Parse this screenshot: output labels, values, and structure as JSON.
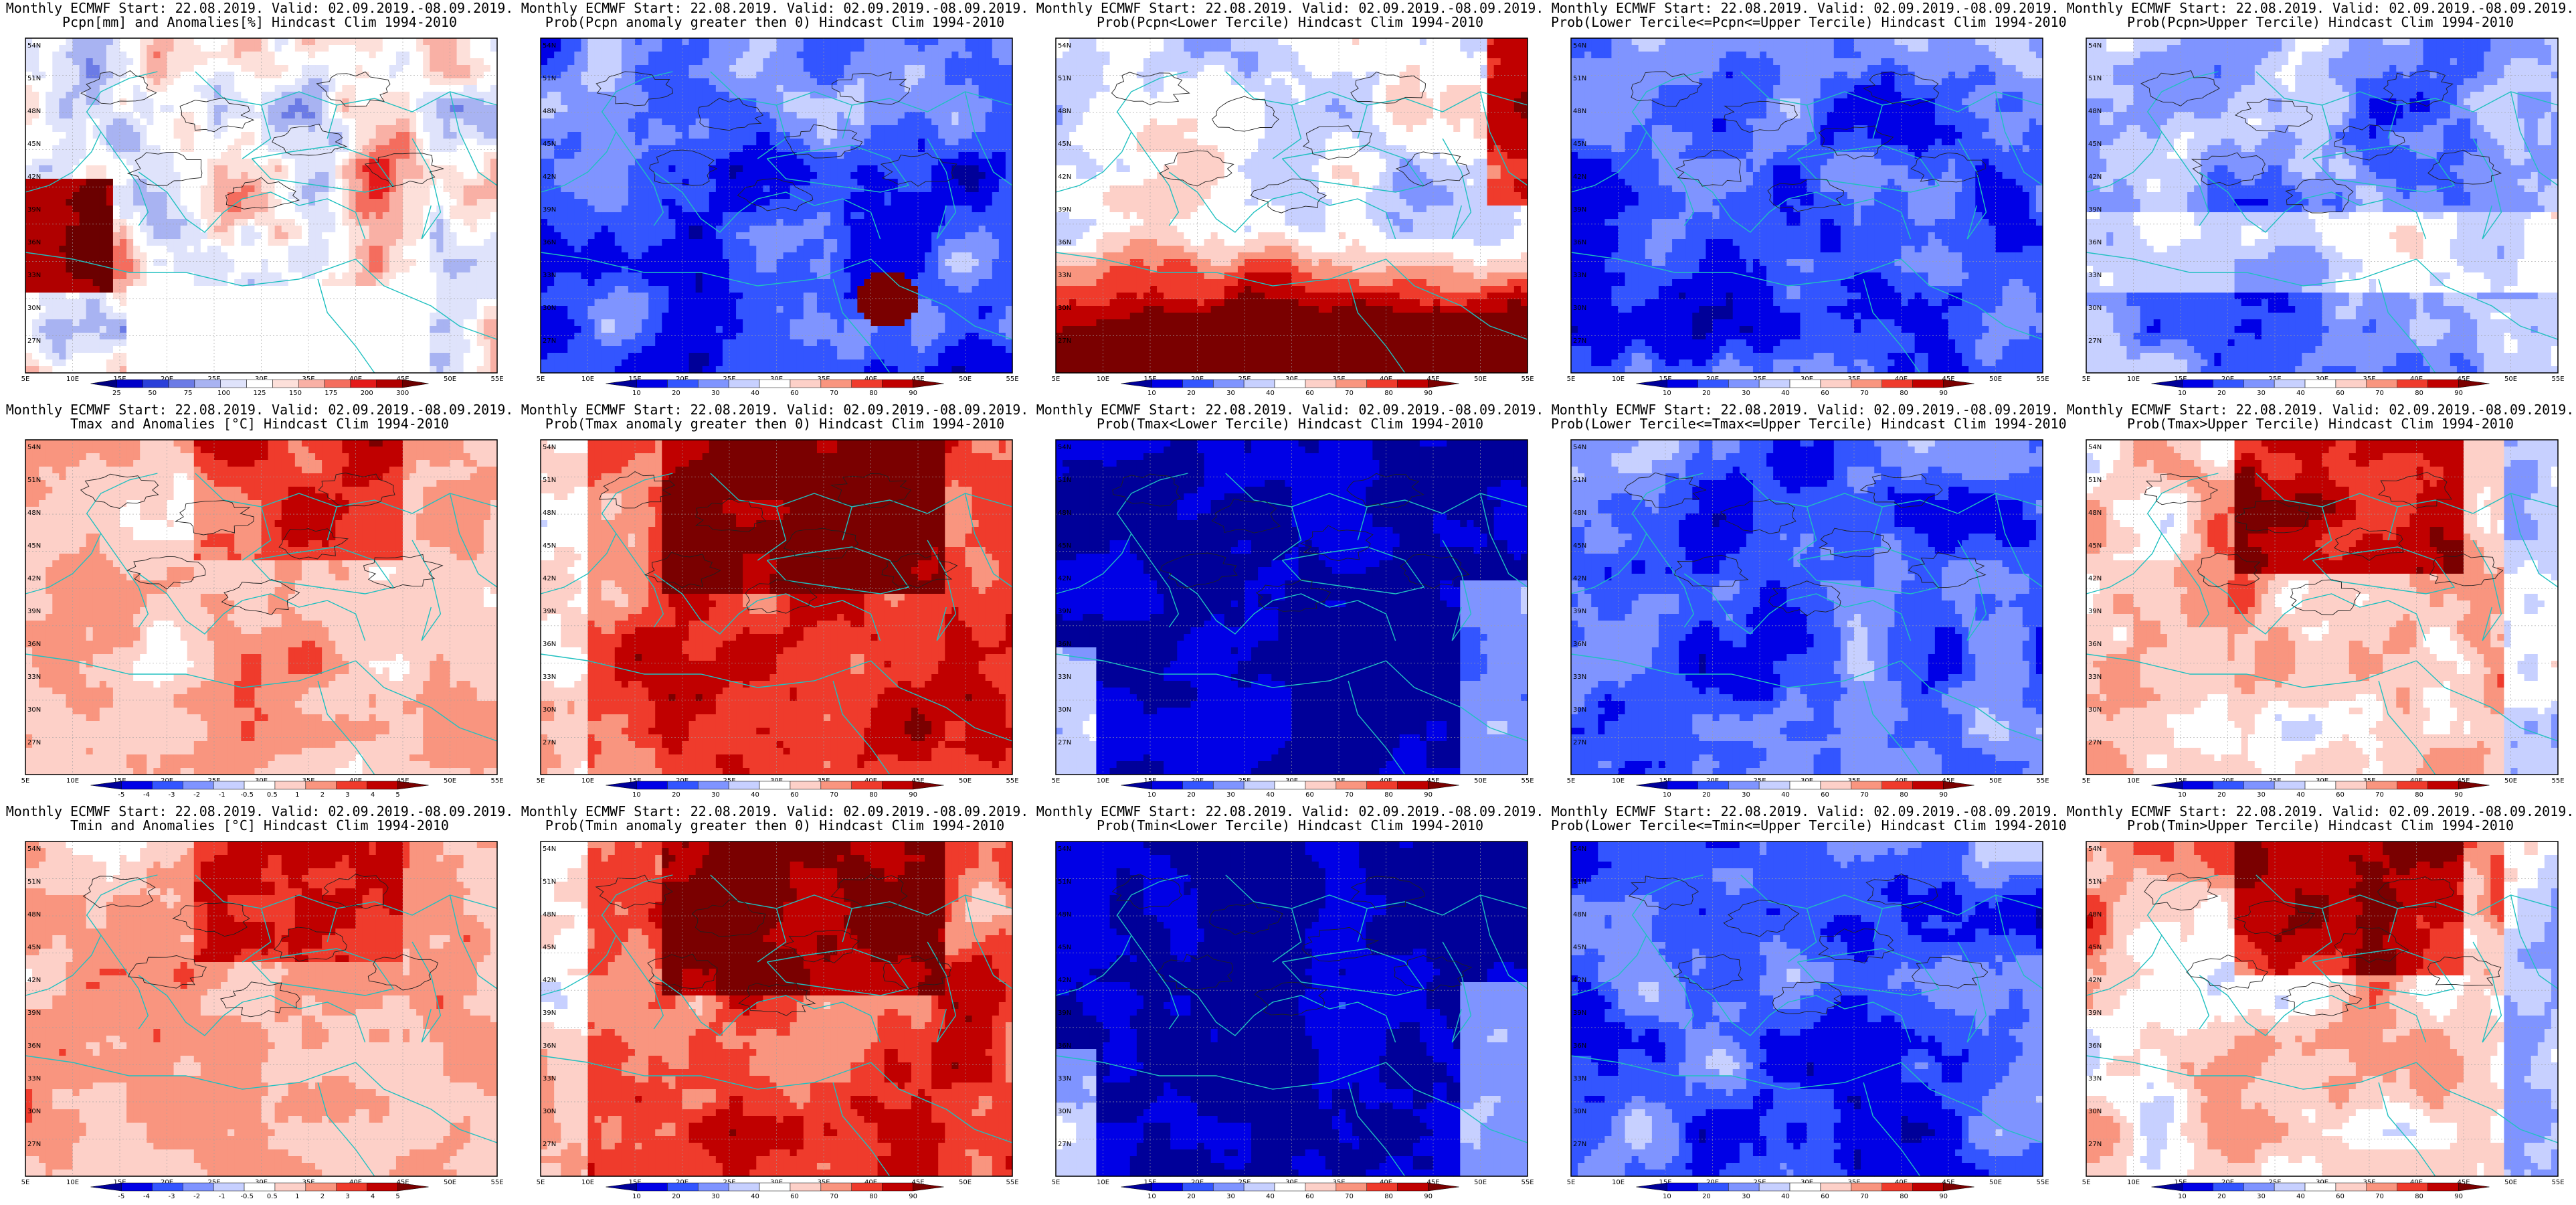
{
  "palettes": {
    "anomaly": [
      "#6b0000",
      "#b00000",
      "#e41a1a",
      "#f46d5e",
      "#f9b0a5",
      "#fde0da",
      "#ffffff",
      "#dfe3fb",
      "#a8b3f2",
      "#6b7be6",
      "#2a3fd9",
      "#0000c8",
      "#000080"
    ],
    "prob_rb": [
      "#000099",
      "#0000e6",
      "#3355ff",
      "#7f94ff",
      "#c7d0ff",
      "#ffffff",
      "#fdd0c8",
      "#f9957f",
      "#ef3b2c",
      "#c00000",
      "#7a0000"
    ],
    "coast": "#20c0c0",
    "contour": "#202020"
  },
  "layout": {
    "columns": 5,
    "rows": 3
  },
  "axes": {
    "lon_labels": [
      "5E",
      "10E",
      "15E",
      "20E",
      "25E",
      "30E",
      "35E",
      "40E",
      "45E",
      "50E",
      "55E"
    ],
    "lat_labels": [
      "54N",
      "51N",
      "48N",
      "45N",
      "42N",
      "39N",
      "36N",
      "33N",
      "30N",
      "27N"
    ]
  },
  "panels": [
    {
      "id": "pcpn-anom",
      "line1": "Monthly ECMWF Start: 22.08.2019. Valid: 02.09.2019.-08.09.2019.",
      "line2": "Pcpn[mm] and Anomalies[%] Hindcast Clim 1994-2010",
      "scheme": "pcpn",
      "cb_labels": [
        "25",
        "50",
        "75",
        "100",
        "125",
        "150",
        "175",
        "200",
        "300"
      ]
    },
    {
      "id": "pcpn-prob-gt0",
      "line1": "Monthly ECMWF Start: 22.08.2019. Valid: 02.09.2019.-08.09.2019.",
      "line2": "Prob(Pcpn anomaly greater then 0) Hindcast Clim 1994-2010",
      "scheme": "blue_dry",
      "cb_labels": [
        "10",
        "20",
        "30",
        "40",
        "60",
        "70",
        "80",
        "90"
      ]
    },
    {
      "id": "pcpn-prob-lower",
      "line1": "Monthly ECMWF Start: 22.08.2019. Valid: 02.09.2019.-08.09.2019.",
      "line2": "Prob(Pcpn<Lower Tercile) Hindcast Clim 1994-2010",
      "scheme": "red_south",
      "cb_labels": [
        "10",
        "20",
        "30",
        "40",
        "60",
        "70",
        "80",
        "90"
      ]
    },
    {
      "id": "pcpn-prob-middle",
      "line1": "Monthly ECMWF Start: 22.08.2019. Valid: 02.09.2019.-08.09.2019.",
      "line2": "Prob(Lower Tercile<=Pcpn<=Upper Tercile) Hindcast Clim 1994-2010",
      "scheme": "blue",
      "cb_labels": [
        "10",
        "20",
        "30",
        "40",
        "60",
        "70",
        "80",
        "90"
      ]
    },
    {
      "id": "pcpn-prob-upper",
      "line1": "Monthly ECMWF Start: 22.08.2019. Valid: 02.09.2019.-08.09.2019.",
      "line2": "Prob(Pcpn>Upper Tercile) Hindcast Clim 1994-2010",
      "scheme": "blue_mix",
      "cb_labels": [
        "10",
        "20",
        "30",
        "40",
        "60",
        "70",
        "80",
        "90"
      ]
    },
    {
      "id": "tmax-anom",
      "line1": "Monthly ECMWF Start: 22.08.2019. Valid: 02.09.2019.-08.09.2019.",
      "line2": "Tmax and Anomalies [°C] Hindcast Clim 1994-2010",
      "scheme": "red_light",
      "cb_labels": [
        "-5",
        "-4",
        "-3",
        "-2",
        "-1",
        "-0.5",
        "0.5",
        "1",
        "2",
        "3",
        "4",
        "5"
      ]
    },
    {
      "id": "tmax-prob-gt0",
      "line1": "Monthly ECMWF Start: 22.08.2019. Valid: 02.09.2019.-08.09.2019.",
      "line2": "Prob(Tmax anomaly greater then 0) Hindcast Clim 1994-2010",
      "scheme": "red_strong",
      "cb_labels": [
        "10",
        "20",
        "30",
        "40",
        "60",
        "70",
        "80",
        "90"
      ]
    },
    {
      "id": "tmax-prob-lower",
      "line1": "Monthly ECMWF Start: 22.08.2019. Valid: 02.09.2019.-08.09.2019.",
      "line2": "Prob(Tmax<Lower Tercile) Hindcast Clim 1994-2010",
      "scheme": "blue_deep",
      "cb_labels": [
        "10",
        "20",
        "30",
        "40",
        "60",
        "70",
        "80",
        "90"
      ]
    },
    {
      "id": "tmax-prob-middle",
      "line1": "Monthly ECMWF Start: 22.08.2019. Valid: 02.09.2019.-08.09.2019.",
      "line2": "Prob(Lower Tercile<=Tmax<=Upper Tercile) Hindcast Clim 1994-2010",
      "scheme": "blue",
      "cb_labels": [
        "10",
        "20",
        "30",
        "40",
        "60",
        "70",
        "80",
        "90"
      ]
    },
    {
      "id": "tmax-prob-upper",
      "line1": "Monthly ECMWF Start: 22.08.2019. Valid: 02.09.2019.-08.09.2019.",
      "line2": "Prob(Tmax>Upper Tercile) Hindcast Clim 1994-2010",
      "scheme": "red_mid",
      "cb_labels": [
        "10",
        "20",
        "30",
        "40",
        "60",
        "70",
        "80",
        "90"
      ]
    },
    {
      "id": "tmin-anom",
      "line1": "Monthly ECMWF Start: 22.08.2019. Valid: 02.09.2019.-08.09.2019.",
      "line2": "Tmin and Anomalies [°C] Hindcast Clim 1994-2010",
      "scheme": "red_light",
      "cb_labels": [
        "-5",
        "-4",
        "-3",
        "-2",
        "-1",
        "-0.5",
        "0.5",
        "1",
        "2",
        "3",
        "4",
        "5"
      ]
    },
    {
      "id": "tmin-prob-gt0",
      "line1": "Monthly ECMWF Start: 22.08.2019. Valid: 02.09.2019.-08.09.2019.",
      "line2": "Prob(Tmin anomaly greater then 0) Hindcast Clim 1994-2010",
      "scheme": "red_strong",
      "cb_labels": [
        "10",
        "20",
        "30",
        "40",
        "60",
        "70",
        "80",
        "90"
      ]
    },
    {
      "id": "tmin-prob-lower",
      "line1": "Monthly ECMWF Start: 22.08.2019. Valid: 02.09.2019.-08.09.2019.",
      "line2": "Prob(Tmin<Lower Tercile) Hindcast Clim 1994-2010",
      "scheme": "blue_deep",
      "cb_labels": [
        "10",
        "20",
        "30",
        "40",
        "60",
        "70",
        "80",
        "90"
      ]
    },
    {
      "id": "tmin-prob-middle",
      "line1": "Monthly ECMWF Start: 22.08.2019. Valid: 02.09.2019.-08.09.2019.",
      "line2": "Prob(Lower Tercile<=Tmin<=Upper Tercile) Hindcast Clim 1994-2010",
      "scheme": "blue",
      "cb_labels": [
        "10",
        "20",
        "30",
        "40",
        "60",
        "70",
        "80",
        "90"
      ]
    },
    {
      "id": "tmin-prob-upper",
      "line1": "Monthly ECMWF Start: 22.08.2019. Valid: 02.09.2019.-08.09.2019.",
      "line2": "Prob(Tmin>Upper Tercile) Hindcast Clim 1994-2010",
      "scheme": "red_mid",
      "cb_labels": [
        "10",
        "20",
        "30",
        "40",
        "60",
        "70",
        "80",
        "90"
      ]
    }
  ]
}
